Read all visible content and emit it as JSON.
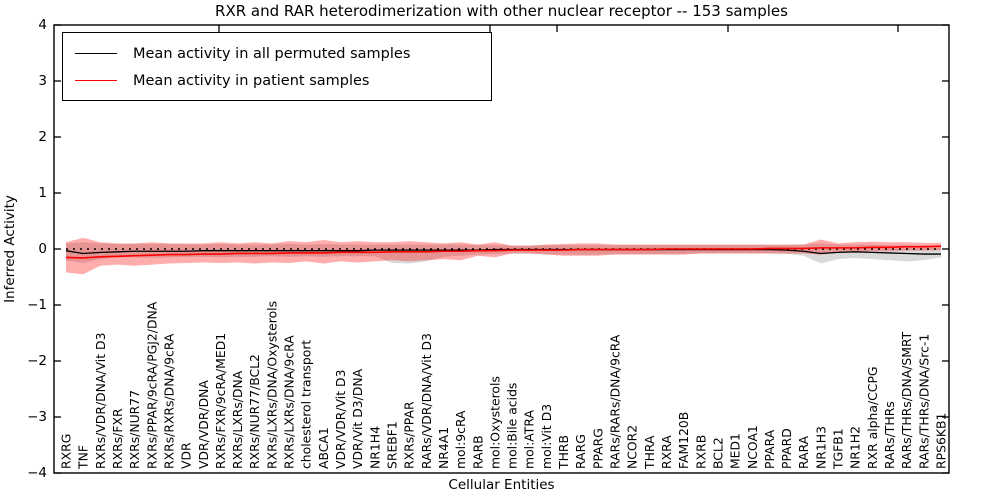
{
  "chart": {
    "title": "RXR and RAR heterodimerization with other nuclear receptor -- 153 samples",
    "xlabel": "Cellular Entities",
    "ylabel": "Inferred Activity"
  },
  "colors": {
    "permuted_line": "#000000",
    "patient_line": "#ff0000",
    "permuted_band": "rgba(0,0,0,0.15)",
    "patient_band": "rgba(255,0,0,0.32)",
    "zero_line": "#000000",
    "axis": "#000000"
  },
  "chart_data": {
    "type": "line",
    "title": "RXR and RAR heterodimerization with other nuclear receptor -- 153 samples",
    "xlabel": "Cellular Entities",
    "ylabel": "Inferred Activity",
    "ylim": [
      -4,
      4
    ],
    "ytick_labels": [
      "4",
      "3",
      "2",
      "1",
      "0",
      "−1",
      "−2",
      "−3",
      "−4"
    ],
    "ytick_values": [
      4,
      3,
      2,
      1,
      0,
      -1,
      -2,
      -3,
      -4
    ],
    "legend_position": "upper left",
    "grid": false,
    "zero_reference_line": 0,
    "categories": [
      "RXRG",
      "TNF",
      "RXRs/VDR/DNA/Vit D3",
      "RXRs/FXR",
      "RXRs/NUR77",
      "RXRs/PPAR/9cRA/PGJ2/DNA",
      "RXRs/RXRs/DNA/9cRA",
      "VDR",
      "VDR/VDR/DNA",
      "RXRs/FXR/9cRA/MED1",
      "RXRs/LXRs/DNA",
      "RXRs/NUR77/BCL2",
      "RXRs/LXRs/DNA/Oxysterols",
      "RXRs/LXRs/DNA/9cRA",
      "cholesterol transport",
      "ABCA1",
      "VDR/VDR/Vit D3",
      "VDR/Vit D3/DNA",
      "NR1H4",
      "SREBF1",
      "RXRs/PPAR",
      "RARs/VDR/DNA/Vit D3",
      "NR4A1",
      "mol:9cRA",
      "RARB",
      "mol:Oxysterols",
      "mol:Bile acids",
      "mol:ATRA",
      "mol:Vit D3",
      "THRB",
      "RARG",
      "PPARG",
      "RARs/RARs/DNA/9cRA",
      "NCOR2",
      "THRA",
      "RXRA",
      "FAM120B",
      "RXRB",
      "BCL2",
      "MED1",
      "NCOA1",
      "PPARA",
      "PPARD",
      "RARA",
      "NR1H3",
      "TGFB1",
      "NR1H2",
      "RXR alpha/CCPG",
      "RARs/THRs",
      "RARs/THRs/DNA/SMRT",
      "RARs/THRs/DNA/Src-1",
      "RPS6KB1"
    ],
    "series": [
      {
        "name": "Mean activity in all permuted samples",
        "color": "#000000",
        "values": [
          -0.03,
          -0.08,
          -0.06,
          -0.05,
          -0.04,
          -0.04,
          -0.04,
          -0.04,
          -0.03,
          -0.03,
          -0.03,
          -0.03,
          -0.03,
          -0.03,
          -0.03,
          -0.03,
          -0.03,
          -0.03,
          -0.02,
          -0.02,
          -0.02,
          -0.02,
          -0.02,
          -0.02,
          -0.02,
          -0.01,
          -0.01,
          -0.01,
          -0.01,
          -0.01,
          -0.01,
          -0.01,
          -0.01,
          -0.01,
          -0.01,
          -0.01,
          -0.01,
          -0.01,
          -0.01,
          -0.01,
          -0.01,
          -0.01,
          -0.02,
          -0.04,
          -0.08,
          -0.06,
          -0.05,
          -0.06,
          -0.07,
          -0.08,
          -0.09,
          -0.09
        ]
      },
      {
        "name": "Mean activity in patient samples",
        "color": "#ff0000",
        "values": [
          -0.15,
          -0.16,
          -0.14,
          -0.13,
          -0.12,
          -0.11,
          -0.1,
          -0.1,
          -0.09,
          -0.09,
          -0.08,
          -0.08,
          -0.08,
          -0.07,
          -0.07,
          -0.07,
          -0.06,
          -0.06,
          -0.06,
          -0.05,
          -0.05,
          -0.05,
          -0.04,
          -0.04,
          -0.03,
          -0.03,
          -0.02,
          -0.02,
          -0.02,
          -0.02,
          -0.01,
          -0.01,
          -0.01,
          -0.01,
          -0.01,
          0.0,
          0.0,
          0.0,
          0.0,
          0.0,
          0.0,
          0.01,
          0.01,
          0.01,
          0.02,
          0.02,
          0.02,
          0.03,
          0.03,
          0.04,
          0.04,
          0.05
        ]
      }
    ],
    "bands": [
      {
        "name": "permuted-activity-envelope",
        "color": "rgba(0,0,0,0.15)",
        "upper": [
          0.1,
          0.12,
          0.1,
          0.09,
          0.09,
          0.09,
          0.09,
          0.08,
          0.08,
          0.09,
          0.08,
          0.08,
          0.08,
          0.09,
          0.08,
          0.09,
          0.08,
          0.08,
          0.08,
          0.08,
          0.08,
          0.08,
          0.08,
          0.08,
          0.07,
          0.07,
          0.06,
          0.06,
          0.07,
          0.07,
          0.07,
          0.07,
          0.07,
          0.07,
          0.07,
          0.07,
          0.07,
          0.07,
          0.07,
          0.07,
          0.07,
          0.07,
          0.07,
          0.08,
          0.1,
          0.08,
          0.08,
          0.08,
          0.07,
          0.07,
          0.07,
          0.06
        ],
        "lower": [
          -0.2,
          -0.25,
          -0.18,
          -0.15,
          -0.15,
          -0.16,
          -0.15,
          -0.14,
          -0.14,
          -0.15,
          -0.14,
          -0.14,
          -0.13,
          -0.14,
          -0.13,
          -0.14,
          -0.13,
          -0.13,
          -0.13,
          -0.25,
          -0.26,
          -0.22,
          -0.14,
          -0.12,
          -0.1,
          -0.09,
          -0.08,
          -0.08,
          -0.09,
          -0.1,
          -0.1,
          -0.1,
          -0.09,
          -0.09,
          -0.09,
          -0.09,
          -0.09,
          -0.08,
          -0.08,
          -0.08,
          -0.08,
          -0.08,
          -0.09,
          -0.12,
          -0.26,
          -0.18,
          -0.16,
          -0.18,
          -0.2,
          -0.22,
          -0.2,
          -0.15
        ]
      },
      {
        "name": "patient-activity-envelope",
        "color": "rgba(255,0,0,0.32)",
        "upper": [
          0.12,
          0.2,
          0.12,
          0.1,
          0.1,
          0.12,
          0.1,
          0.1,
          0.1,
          0.12,
          0.1,
          0.12,
          0.1,
          0.14,
          0.12,
          0.16,
          0.12,
          0.14,
          0.12,
          0.12,
          0.14,
          0.12,
          0.1,
          0.12,
          0.08,
          0.12,
          0.06,
          0.06,
          0.08,
          0.09,
          0.1,
          0.1,
          0.08,
          0.08,
          0.08,
          0.08,
          0.08,
          0.08,
          0.08,
          0.08,
          0.08,
          0.08,
          0.08,
          0.08,
          0.17,
          0.1,
          0.12,
          0.13,
          0.12,
          0.12,
          0.11,
          0.11
        ],
        "lower": [
          -0.42,
          -0.45,
          -0.3,
          -0.28,
          -0.3,
          -0.28,
          -0.26,
          -0.25,
          -0.24,
          -0.25,
          -0.24,
          -0.26,
          -0.24,
          -0.25,
          -0.22,
          -0.26,
          -0.22,
          -0.24,
          -0.22,
          -0.2,
          -0.22,
          -0.2,
          -0.18,
          -0.2,
          -0.12,
          -0.15,
          -0.08,
          -0.08,
          -0.1,
          -0.12,
          -0.12,
          -0.12,
          -0.1,
          -0.1,
          -0.1,
          -0.1,
          -0.1,
          -0.08,
          -0.08,
          -0.08,
          -0.08,
          -0.08,
          -0.08,
          -0.08,
          -0.1,
          -0.06,
          -0.05,
          -0.04,
          -0.04,
          -0.03,
          -0.03,
          -0.02
        ]
      }
    ]
  }
}
